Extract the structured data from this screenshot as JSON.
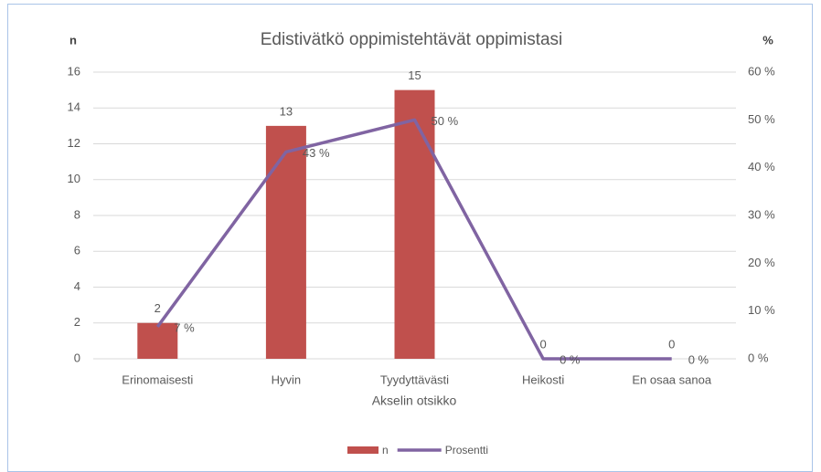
{
  "chart_data": {
    "type": "combo",
    "title": "Edistivätkö oppimistehtävät oppimistasi",
    "ylabel": "n",
    "y2label": "%",
    "xlabel": "Akselin otsikko",
    "categories": [
      "Erinomaisesti",
      "Hyvin",
      "Tyydyttävästi",
      "Heikosti",
      "En osaa sanoa"
    ],
    "series": [
      {
        "name": "n",
        "type": "bar",
        "color": "#c0504d",
        "values": [
          2,
          13,
          15,
          0,
          0
        ]
      },
      {
        "name": "Prosentti",
        "type": "line",
        "axis": "y2",
        "color": "#8064a2",
        "values": [
          6.7,
          43.3,
          50,
          0,
          0
        ],
        "value_labels": [
          "7 %",
          "43 %",
          "50 %",
          "0 %",
          "0 %"
        ]
      }
    ],
    "ylim": [
      0,
      16
    ],
    "yticks": [
      0,
      2,
      4,
      6,
      8,
      10,
      12,
      14,
      16
    ],
    "y2lim": [
      0,
      60
    ],
    "y2ticks": [
      {
        "value": 0,
        "label": "0 %"
      },
      {
        "value": 10,
        "label": "10 %"
      },
      {
        "value": 20,
        "label": "20 %"
      },
      {
        "value": 30,
        "label": "30 %"
      },
      {
        "value": 40,
        "label": "40 %"
      },
      {
        "value": 50,
        "label": "50 %"
      },
      {
        "value": 60,
        "label": "60 %"
      }
    ],
    "grid": true,
    "legend": "bottom"
  }
}
